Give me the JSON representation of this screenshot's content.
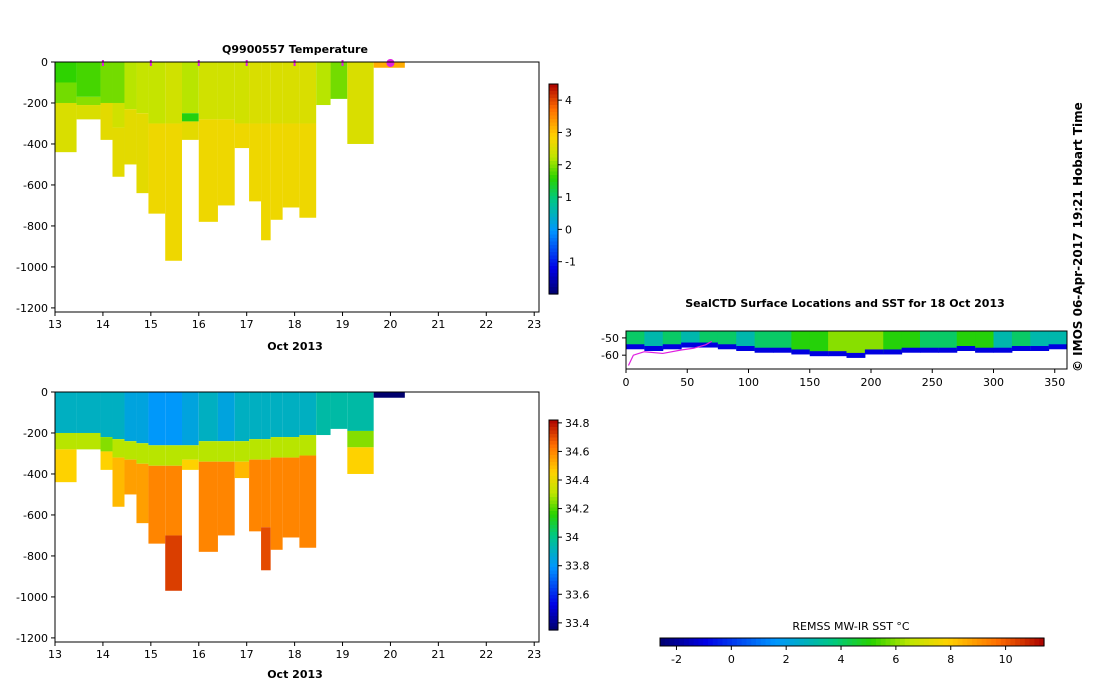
{
  "credit": "© IMOS 06-Apr-2017 19:21 Hobart Time",
  "chart_data": [
    {
      "id": "temperature",
      "type": "heatmap",
      "title": "Q9900557  Temperature",
      "xlabel": "Oct 2013",
      "xlim": [
        13,
        23.1
      ],
      "ylim": [
        -1220,
        0
      ],
      "xticks": [
        "13",
        "14",
        "15",
        "16",
        "17",
        "18",
        "19",
        "20",
        "21",
        "22",
        "23"
      ],
      "yticks": [
        "0",
        "-200",
        "-400",
        "-600",
        "-800",
        "-1000",
        "-1200"
      ],
      "colorbar": {
        "range": [
          -2,
          4.5
        ],
        "ticks": [
          "4",
          "3",
          "2",
          "1",
          "0",
          "-1"
        ]
      },
      "surface_markers": [
        14,
        15,
        16,
        17,
        18,
        19
      ],
      "current_marker": 20,
      "profiles": [
        {
          "t0": 13.0,
          "t1": 13.45,
          "depth": 440,
          "layers": [
            [
              0,
              100,
              1.6
            ],
            [
              100,
              200,
              1.9
            ],
            [
              200,
              440,
              2.5
            ]
          ]
        },
        {
          "t0": 13.45,
          "t1": 13.95,
          "depth": 280,
          "layers": [
            [
              0,
              170,
              1.7
            ],
            [
              170,
              210,
              2.0
            ],
            [
              210,
              280,
              2.5
            ]
          ]
        },
        {
          "t0": 13.95,
          "t1": 14.2,
          "depth": 380,
          "layers": [
            [
              0,
              200,
              1.9
            ],
            [
              200,
              380,
              2.6
            ]
          ]
        },
        {
          "t0": 14.2,
          "t1": 14.45,
          "depth": 560,
          "layers": [
            [
              0,
              200,
              1.9
            ],
            [
              200,
              320,
              2.4
            ],
            [
              320,
              560,
              2.6
            ]
          ]
        },
        {
          "t0": 14.45,
          "t1": 14.7,
          "depth": 500,
          "layers": [
            [
              0,
              230,
              2.2
            ],
            [
              230,
              500,
              2.6
            ]
          ]
        },
        {
          "t0": 14.7,
          "t1": 14.95,
          "depth": 640,
          "layers": [
            [
              0,
              250,
              2.3
            ],
            [
              250,
              640,
              2.6
            ]
          ]
        },
        {
          "t0": 14.95,
          "t1": 15.3,
          "depth": 740,
          "layers": [
            [
              0,
              300,
              2.3
            ],
            [
              300,
              740,
              2.7
            ]
          ]
        },
        {
          "t0": 15.3,
          "t1": 15.65,
          "depth": 970,
          "layers": [
            [
              0,
              300,
              2.4
            ],
            [
              300,
              970,
              2.7
            ]
          ]
        },
        {
          "t0": 15.65,
          "t1": 16.0,
          "depth": 380,
          "layers": [
            [
              0,
              250,
              2.2
            ],
            [
              250,
              290,
              1.5
            ],
            [
              290,
              380,
              2.6
            ]
          ]
        },
        {
          "t0": 16.0,
          "t1": 16.4,
          "depth": 780,
          "layers": [
            [
              0,
              280,
              2.4
            ],
            [
              280,
              780,
              2.7
            ]
          ]
        },
        {
          "t0": 16.4,
          "t1": 16.75,
          "depth": 700,
          "layers": [
            [
              0,
              280,
              2.4
            ],
            [
              280,
              700,
              2.7
            ]
          ]
        },
        {
          "t0": 16.75,
          "t1": 17.05,
          "depth": 420,
          "layers": [
            [
              0,
              300,
              2.4
            ],
            [
              300,
              420,
              2.7
            ]
          ]
        },
        {
          "t0": 17.05,
          "t1": 17.3,
          "depth": 680,
          "layers": [
            [
              0,
              300,
              2.5
            ],
            [
              300,
              680,
              2.7
            ]
          ]
        },
        {
          "t0": 17.3,
          "t1": 17.5,
          "depth": 870,
          "layers": [
            [
              0,
              300,
              2.5
            ],
            [
              300,
              870,
              2.7
            ]
          ]
        },
        {
          "t0": 17.5,
          "t1": 17.75,
          "depth": 770,
          "layers": [
            [
              0,
              300,
              2.5
            ],
            [
              300,
              770,
              2.7
            ]
          ]
        },
        {
          "t0": 17.75,
          "t1": 18.1,
          "depth": 710,
          "layers": [
            [
              0,
              300,
              2.5
            ],
            [
              300,
              710,
              2.7
            ]
          ]
        },
        {
          "t0": 18.1,
          "t1": 18.45,
          "depth": 760,
          "layers": [
            [
              0,
              300,
              2.5
            ],
            [
              300,
              760,
              2.7
            ]
          ]
        },
        {
          "t0": 18.45,
          "t1": 18.75,
          "depth": 210,
          "layers": [
            [
              0,
              210,
              2.2
            ]
          ]
        },
        {
          "t0": 18.75,
          "t1": 19.1,
          "depth": 180,
          "layers": [
            [
              0,
              180,
              1.9
            ]
          ]
        },
        {
          "t0": 19.1,
          "t1": 19.65,
          "depth": 400,
          "layers": [
            [
              0,
              400,
              2.5
            ]
          ]
        },
        {
          "t0": 19.65,
          "t1": 20.3,
          "depth": 28,
          "layers": [
            [
              0,
              28,
              3.2
            ]
          ]
        }
      ]
    },
    {
      "id": "salinity",
      "type": "heatmap",
      "title": "",
      "xlabel": "Oct 2013",
      "xlim": [
        13,
        23.1
      ],
      "ylim": [
        -1220,
        0
      ],
      "xticks": [
        "13",
        "14",
        "15",
        "16",
        "17",
        "18",
        "19",
        "20",
        "21",
        "22",
        "23"
      ],
      "yticks": [
        "0",
        "-200",
        "-400",
        "-600",
        "-800",
        "-1000",
        "-1200"
      ],
      "colorbar": {
        "range": [
          33.35,
          34.82
        ],
        "ticks": [
          "34.8",
          "34.6",
          "34.4",
          "34.2",
          "34",
          "33.8",
          "33.6",
          "33.4"
        ]
      },
      "profiles": [
        {
          "t0": 13.0,
          "t1": 13.45,
          "depth": 440,
          "layers": [
            [
              0,
              200,
              33.9
            ],
            [
              200,
              280,
              34.3
            ],
            [
              280,
              440,
              34.45
            ]
          ]
        },
        {
          "t0": 13.45,
          "t1": 13.95,
          "depth": 280,
          "layers": [
            [
              0,
              200,
              33.9
            ],
            [
              200,
              280,
              34.3
            ]
          ]
        },
        {
          "t0": 13.95,
          "t1": 14.2,
          "depth": 380,
          "layers": [
            [
              0,
              220,
              33.9
            ],
            [
              220,
              290,
              34.25
            ],
            [
              290,
              380,
              34.45
            ]
          ]
        },
        {
          "t0": 14.2,
          "t1": 14.45,
          "depth": 560,
          "layers": [
            [
              0,
              230,
              33.9
            ],
            [
              230,
              320,
              34.3
            ],
            [
              320,
              560,
              34.5
            ]
          ]
        },
        {
          "t0": 14.45,
          "t1": 14.7,
          "depth": 500,
          "layers": [
            [
              0,
              240,
              33.85
            ],
            [
              240,
              330,
              34.3
            ],
            [
              330,
              500,
              34.55
            ]
          ]
        },
        {
          "t0": 14.7,
          "t1": 14.95,
          "depth": 640,
          "layers": [
            [
              0,
              250,
              33.85
            ],
            [
              250,
              350,
              34.3
            ],
            [
              350,
              640,
              34.55
            ]
          ]
        },
        {
          "t0": 14.95,
          "t1": 15.3,
          "depth": 740,
          "layers": [
            [
              0,
              260,
              33.8
            ],
            [
              260,
              360,
              34.3
            ],
            [
              360,
              740,
              34.6
            ]
          ]
        },
        {
          "t0": 15.3,
          "t1": 15.65,
          "depth": 970,
          "layers": [
            [
              0,
              260,
              33.8
            ],
            [
              260,
              360,
              34.3
            ],
            [
              360,
              700,
              34.6
            ],
            [
              700,
              970,
              34.72
            ]
          ]
        },
        {
          "t0": 15.65,
          "t1": 16.0,
          "depth": 380,
          "layers": [
            [
              0,
              260,
              33.85
            ],
            [
              260,
              330,
              34.3
            ],
            [
              330,
              380,
              34.45
            ]
          ]
        },
        {
          "t0": 16.0,
          "t1": 16.4,
          "depth": 780,
          "layers": [
            [
              0,
              240,
              33.9
            ],
            [
              240,
              340,
              34.3
            ],
            [
              340,
              780,
              34.6
            ]
          ]
        },
        {
          "t0": 16.4,
          "t1": 16.75,
          "depth": 700,
          "layers": [
            [
              0,
              240,
              33.85
            ],
            [
              240,
              340,
              34.3
            ],
            [
              340,
              700,
              34.6
            ]
          ]
        },
        {
          "t0": 16.75,
          "t1": 17.05,
          "depth": 420,
          "layers": [
            [
              0,
              240,
              33.9
            ],
            [
              240,
              340,
              34.3
            ],
            [
              340,
              420,
              34.5
            ]
          ]
        },
        {
          "t0": 17.05,
          "t1": 17.3,
          "depth": 680,
          "layers": [
            [
              0,
              230,
              33.9
            ],
            [
              230,
              330,
              34.3
            ],
            [
              330,
              680,
              34.6
            ]
          ]
        },
        {
          "t0": 17.3,
          "t1": 17.5,
          "depth": 870,
          "layers": [
            [
              0,
              230,
              33.9
            ],
            [
              230,
              330,
              34.3
            ],
            [
              330,
              660,
              34.6
            ],
            [
              660,
              870,
              34.7
            ]
          ]
        },
        {
          "t0": 17.5,
          "t1": 17.75,
          "depth": 770,
          "layers": [
            [
              0,
              220,
              33.9
            ],
            [
              220,
              320,
              34.3
            ],
            [
              320,
              770,
              34.6
            ]
          ]
        },
        {
          "t0": 17.75,
          "t1": 18.1,
          "depth": 710,
          "layers": [
            [
              0,
              220,
              33.9
            ],
            [
              220,
              320,
              34.3
            ],
            [
              320,
              710,
              34.6
            ]
          ]
        },
        {
          "t0": 18.1,
          "t1": 18.45,
          "depth": 760,
          "layers": [
            [
              0,
              210,
              33.9
            ],
            [
              210,
              310,
              34.3
            ],
            [
              310,
              760,
              34.6
            ]
          ]
        },
        {
          "t0": 18.45,
          "t1": 18.75,
          "depth": 210,
          "layers": [
            [
              0,
              210,
              33.95
            ]
          ]
        },
        {
          "t0": 18.75,
          "t1": 19.1,
          "depth": 180,
          "layers": [
            [
              0,
              180,
              33.95
            ]
          ]
        },
        {
          "t0": 19.1,
          "t1": 19.65,
          "depth": 400,
          "layers": [
            [
              0,
              190,
              33.95
            ],
            [
              190,
              270,
              34.25
            ],
            [
              270,
              400,
              34.45
            ]
          ]
        },
        {
          "t0": 19.65,
          "t1": 20.3,
          "depth": 28,
          "layers": [
            [
              0,
              28,
              33.35
            ]
          ]
        }
      ]
    },
    {
      "id": "map",
      "type": "scatter",
      "title": "SealCTD Surface Locations and SST for 18 Oct 2013",
      "xlim": [
        0,
        360
      ],
      "ylim": [
        -68,
        -46
      ],
      "xticks": [
        "0",
        "50",
        "100",
        "150",
        "200",
        "250",
        "300",
        "350"
      ],
      "yticks": [
        "-50",
        "-60"
      ],
      "sst_band": [
        [
          0,
          -56,
          4
        ],
        [
          15,
          -57,
          3
        ],
        [
          30,
          -56,
          4
        ],
        [
          45,
          -55,
          3
        ],
        [
          60,
          -55,
          4
        ],
        [
          75,
          -56,
          4
        ],
        [
          90,
          -57,
          3
        ],
        [
          105,
          -58,
          4
        ],
        [
          120,
          -58,
          4
        ],
        [
          135,
          -59,
          5
        ],
        [
          150,
          -60,
          5
        ],
        [
          165,
          -60,
          6
        ],
        [
          180,
          -61,
          6
        ],
        [
          195,
          -59,
          6
        ],
        [
          210,
          -59,
          5
        ],
        [
          225,
          -58,
          5
        ],
        [
          240,
          -58,
          4
        ],
        [
          255,
          -58,
          4
        ],
        [
          270,
          -57,
          5
        ],
        [
          285,
          -58,
          5
        ],
        [
          300,
          -58,
          3
        ],
        [
          315,
          -57,
          4
        ],
        [
          330,
          -57,
          3
        ],
        [
          345,
          -56,
          3
        ],
        [
          360,
          -56,
          3
        ]
      ],
      "track": [
        [
          2,
          -66
        ],
        [
          6,
          -60
        ],
        [
          15,
          -58
        ],
        [
          30,
          -59
        ],
        [
          45,
          -57
        ],
        [
          55,
          -56
        ],
        [
          65,
          -54
        ],
        [
          70,
          -52
        ]
      ],
      "track_color": "#e020e0",
      "colorbar": {
        "label": "REMSS MW-IR SST °C",
        "range": [
          -2.6,
          11.4
        ],
        "ticks": [
          "-2",
          "0",
          "2",
          "4",
          "6",
          "8",
          "10"
        ]
      }
    }
  ]
}
